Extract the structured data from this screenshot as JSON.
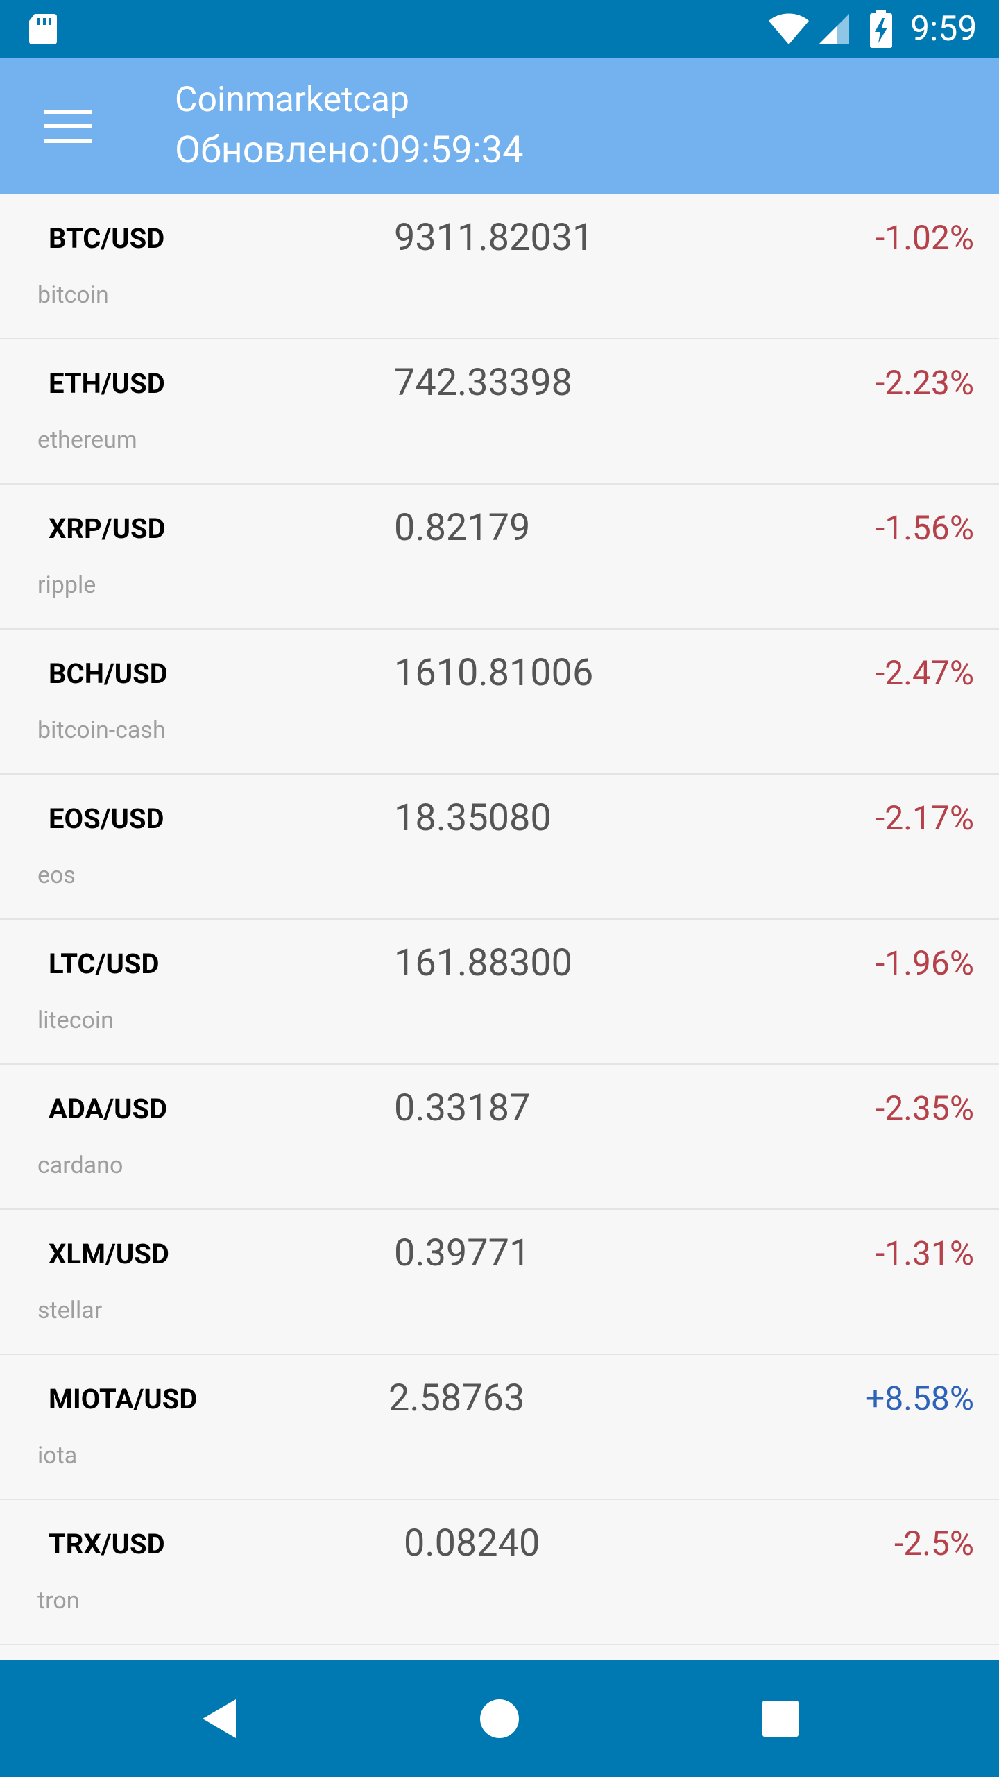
{
  "status_bar": {
    "time": "9:59",
    "icons": [
      "sd-card-icon",
      "wifi-icon",
      "signal-icon",
      "battery-charging-icon"
    ]
  },
  "app_bar": {
    "title": "Coinmarketcap",
    "subtitle": "Обновлено:09:59:34",
    "menu_icon": "hamburger-menu-icon"
  },
  "colors": {
    "status_bar": "#0079b3",
    "app_bar": "#73b2ee",
    "negative": "#b5424a",
    "positive": "#2f63b8"
  },
  "coins": [
    {
      "pair": "BTC/USD",
      "name": "bitcoin",
      "price": "9311.82031",
      "change": "-1.02%",
      "direction": "neg"
    },
    {
      "pair": "ETH/USD",
      "name": "ethereum",
      "price": "742.33398",
      "change": "-2.23%",
      "direction": "neg"
    },
    {
      "pair": "XRP/USD",
      "name": "ripple",
      "price": "0.82179",
      "change": "-1.56%",
      "direction": "neg"
    },
    {
      "pair": "BCH/USD",
      "name": "bitcoin-cash",
      "price": "1610.81006",
      "change": "-2.47%",
      "direction": "neg"
    },
    {
      "pair": "EOS/USD",
      "name": "eos",
      "price": "18.35080",
      "change": "-2.17%",
      "direction": "neg"
    },
    {
      "pair": "LTC/USD",
      "name": "litecoin",
      "price": "161.88300",
      "change": "-1.96%",
      "direction": "neg"
    },
    {
      "pair": "ADA/USD",
      "name": "cardano",
      "price": "0.33187",
      "change": "-2.35%",
      "direction": "neg"
    },
    {
      "pair": "XLM/USD",
      "name": "stellar",
      "price": "0.39771",
      "change": "-1.31%",
      "direction": "neg"
    },
    {
      "pair": "MIOTA/USD",
      "name": "iota",
      "price": "2.58763",
      "change": "+8.58%",
      "direction": "pos"
    },
    {
      "pair": "TRX/USD",
      "name": "tron",
      "price": "0.08240",
      "change": "-2.5%",
      "direction": "neg"
    }
  ],
  "nav_bar": {
    "buttons": [
      "back-icon",
      "home-icon",
      "recents-icon"
    ]
  }
}
